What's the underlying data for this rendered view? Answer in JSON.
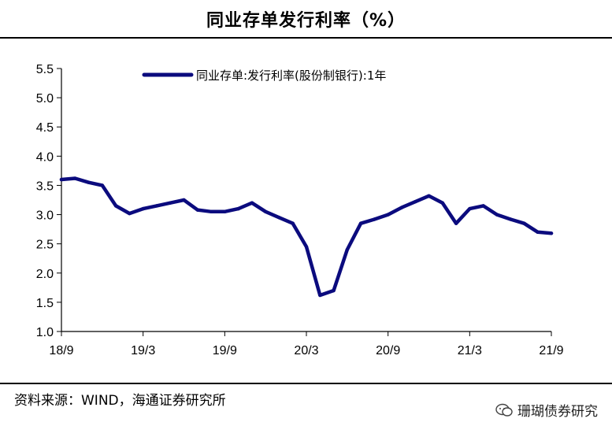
{
  "title": "同业存单发行利率（%）",
  "source": "资料来源：WIND，海通证券研究所",
  "watermark": {
    "text": "珊瑚债券研究",
    "icon": "chat-bubble-icon"
  },
  "colors": {
    "series": "#0B0B7E",
    "axis": "#000000"
  },
  "chart_data": {
    "type": "line",
    "title": "同业存单发行利率（%）",
    "xlabel": "",
    "ylabel": "",
    "ylim": [
      1.0,
      5.5
    ],
    "yticks": [
      "1.0",
      "1.5",
      "2.0",
      "2.5",
      "3.0",
      "3.5",
      "4.0",
      "4.5",
      "5.0",
      "5.5"
    ],
    "xticks": [
      "18/9",
      "19/3",
      "19/9",
      "20/3",
      "20/9",
      "21/3",
      "21/9"
    ],
    "grid": false,
    "legend": "top-center",
    "series": [
      {
        "name": "同业存单:发行利率(股份制银行):1年",
        "x": [
          "2018-09",
          "2018-10",
          "2018-11",
          "2018-12",
          "2019-01",
          "2019-02",
          "2019-03",
          "2019-04",
          "2019-05",
          "2019-06",
          "2019-07",
          "2019-08",
          "2019-09",
          "2019-10",
          "2019-11",
          "2019-12",
          "2020-01",
          "2020-02",
          "2020-03",
          "2020-04",
          "2020-05",
          "2020-06",
          "2020-07",
          "2020-08",
          "2020-09",
          "2020-10",
          "2020-11",
          "2020-12",
          "2021-01",
          "2021-02",
          "2021-03",
          "2021-04",
          "2021-05",
          "2021-06",
          "2021-07",
          "2021-08",
          "2021-09"
        ],
        "values": [
          3.6,
          3.62,
          3.55,
          3.5,
          3.15,
          3.02,
          3.1,
          3.15,
          3.2,
          3.25,
          3.08,
          3.05,
          3.05,
          3.1,
          3.2,
          3.05,
          2.95,
          2.85,
          2.45,
          1.62,
          1.7,
          2.4,
          2.85,
          2.92,
          3.0,
          3.12,
          3.22,
          3.32,
          3.2,
          2.85,
          3.1,
          3.15,
          3.0,
          2.92,
          2.85,
          2.7,
          2.68
        ]
      }
    ]
  }
}
